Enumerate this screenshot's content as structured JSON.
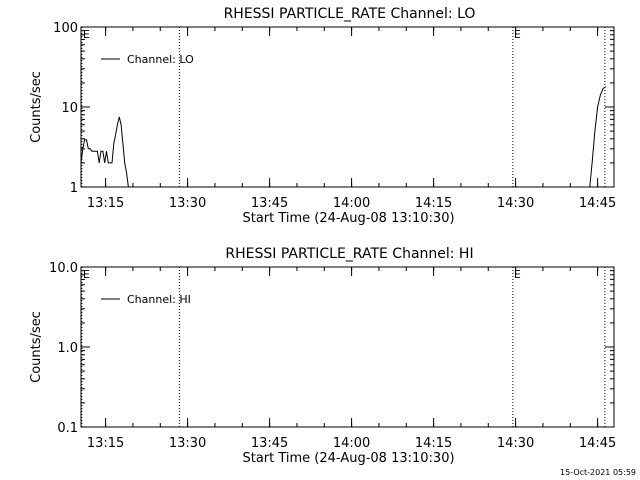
{
  "chart_data": [
    {
      "type": "line",
      "title": "RHESSI PARTICLE_RATE Channel: LO",
      "xlabel": "Start Time (24-Aug-08 13:10:30)",
      "ylabel": "Counts/sec",
      "yscale": "log",
      "ylim": [
        1,
        100
      ],
      "xlim": [
        "13:10:30",
        "14:48:00"
      ],
      "yticks": [
        {
          "v": 1,
          "label": "1"
        },
        {
          "v": 10,
          "label": "10"
        },
        {
          "v": 100,
          "label": "100"
        }
      ],
      "xticks": [
        "13:15",
        "13:30",
        "13:45",
        "14:00",
        "14:15",
        "14:30",
        "14:45"
      ],
      "legend": {
        "label": "Channel: LO",
        "position": "top-left"
      },
      "markers": [
        {
          "time": "13:10:40",
          "label": "E"
        },
        {
          "time": "13:28:30",
          "label": ""
        },
        {
          "time": "14:29:30",
          "label": "E"
        },
        {
          "time": "14:46:20",
          "label": ""
        }
      ],
      "series": [
        {
          "name": "Channel: LO",
          "segments": [
            {
              "x": [
                "13:10:30",
                "13:10:50",
                "13:11:10",
                "13:11:30",
                "13:11:50",
                "13:12:10",
                "13:12:30",
                "13:12:50",
                "13:13:10",
                "13:13:30",
                "13:13:50",
                "13:14:10",
                "13:14:30",
                "13:14:50",
                "13:15:10",
                "13:15:30",
                "13:15:50",
                "13:16:10",
                "13:16:30",
                "13:16:50",
                "13:17:10",
                "13:17:30",
                "13:17:50",
                "13:18:10",
                "13:18:30",
                "13:18:50",
                "13:19:10",
                "13:19:30",
                "13:19:50",
                "13:20:00"
              ],
              "y": [
                2.0,
                3.0,
                3.9,
                3.9,
                3.0,
                3.0,
                2.8,
                2.8,
                2.8,
                2.8,
                2.0,
                2.8,
                2.8,
                2.0,
                2.8,
                2.0,
                2.0,
                2.0,
                3.5,
                4.5,
                6.0,
                7.5,
                6.0,
                3.5,
                2.0,
                1.5,
                1.0,
                0.8,
                0.6,
                0.5
              ]
            },
            {
              "x": [
                "14:43:00",
                "14:43:30",
                "14:44:00",
                "14:44:30",
                "14:45:00",
                "14:45:30",
                "14:46:00",
                "14:46:30"
              ],
              "y": [
                0.5,
                0.9,
                2.0,
                5.0,
                10.0,
                14.0,
                17.0,
                18.0
              ]
            }
          ]
        }
      ]
    },
    {
      "type": "line",
      "title": "RHESSI PARTICLE_RATE Channel: HI",
      "xlabel": "Start Time (24-Aug-08 13:10:30)",
      "ylabel": "Counts/sec",
      "yscale": "log",
      "ylim": [
        0.1,
        10
      ],
      "xlim": [
        "13:10:30",
        "14:48:00"
      ],
      "yticks": [
        {
          "v": 0.1,
          "label": "0.1"
        },
        {
          "v": 1,
          "label": "1.0"
        },
        {
          "v": 10,
          "label": "10.0"
        }
      ],
      "xticks": [
        "13:15",
        "13:30",
        "13:45",
        "14:00",
        "14:15",
        "14:30",
        "14:45"
      ],
      "legend": {
        "label": "Channel: HI",
        "position": "top-left"
      },
      "markers": [
        {
          "time": "13:10:40",
          "label": "E"
        },
        {
          "time": "13:28:30",
          "label": ""
        },
        {
          "time": "14:29:30",
          "label": "E"
        },
        {
          "time": "14:46:20",
          "label": ""
        }
      ],
      "series": [
        {
          "name": "Channel: HI",
          "segments": []
        }
      ]
    }
  ],
  "footer": {
    "timestamp": "15-Oct-2021 05:59"
  }
}
